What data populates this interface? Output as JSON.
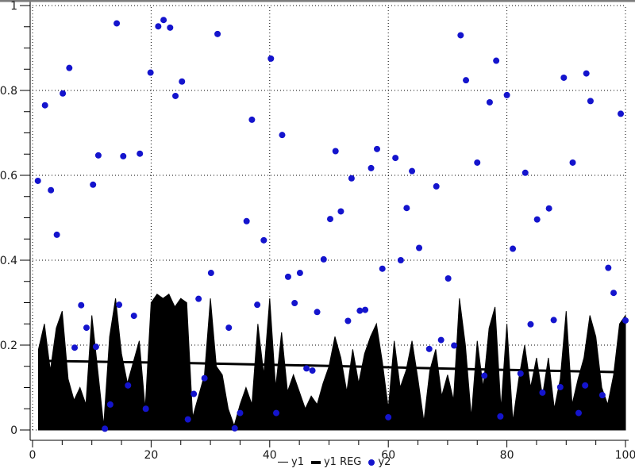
{
  "colors": {
    "background": "#ffffff",
    "series_area": "#000000",
    "regression_line": "#000000",
    "scatter": "#1414cd",
    "grid": "#000000",
    "frame": "#7b7b7b",
    "text": "#1a1a1a"
  },
  "chart_data": {
    "type": "mixed",
    "title": "",
    "grid": "dotted lines at every major tick, plot border dotted",
    "legend_position": "bottom-center",
    "x_axis": {
      "min": 0,
      "max": 100,
      "major_ticks": [
        0,
        20,
        40,
        60,
        80,
        100
      ],
      "tick_labels": [
        "0",
        "20",
        "40",
        "60",
        "80",
        "100"
      ],
      "minor_tick_step": 5
    },
    "y_axis": {
      "min": 0,
      "max": 1,
      "major_ticks": [
        0,
        0.2,
        0.4,
        0.6,
        0.8,
        1
      ],
      "tick_labels": [
        "0",
        "0.2",
        "0.4",
        "0.6",
        "0.8",
        "1"
      ],
      "minor_tick_step": 0.05
    },
    "legend": [
      {
        "label": "y1",
        "swatch": "thin-line",
        "color": "#000000"
      },
      {
        "label": "y1 REG",
        "swatch": "thick-line",
        "color": "#000000"
      },
      {
        "label": "y2",
        "swatch": "dot",
        "color": "#1414cd"
      }
    ],
    "series": [
      {
        "name": "y1",
        "type": "area",
        "color": "#000000",
        "x_start": 1,
        "x_step": 1,
        "values": [
          0.19,
          0.25,
          0.14,
          0.24,
          0.28,
          0.12,
          0.07,
          0.1,
          0.06,
          0.27,
          0.14,
          0.01,
          0.22,
          0.31,
          0.18,
          0.11,
          0.16,
          0.21,
          0.05,
          0.3,
          0.32,
          0.31,
          0.32,
          0.29,
          0.31,
          0.3,
          0.03,
          0.08,
          0.13,
          0.31,
          0.15,
          0.13,
          0.05,
          0.01,
          0.06,
          0.1,
          0.06,
          0.25,
          0.13,
          0.31,
          0.1,
          0.23,
          0.09,
          0.13,
          0.09,
          0.05,
          0.08,
          0.06,
          0.11,
          0.15,
          0.22,
          0.17,
          0.09,
          0.19,
          0.11,
          0.18,
          0.22,
          0.25,
          0.16,
          0.05,
          0.21,
          0.1,
          0.14,
          0.21,
          0.12,
          0.02,
          0.14,
          0.19,
          0.08,
          0.13,
          0.07,
          0.31,
          0.2,
          0.03,
          0.21,
          0.1,
          0.24,
          0.29,
          0.05,
          0.25,
          0.02,
          0.12,
          0.2,
          0.1,
          0.17,
          0.08,
          0.17,
          0.05,
          0.12,
          0.28,
          0.06,
          0.12,
          0.17,
          0.27,
          0.22,
          0.1,
          0.06,
          0.13,
          0.25,
          0.27
        ]
      },
      {
        "name": "y1 REG",
        "type": "line",
        "color": "#000000",
        "stroke_width": 3,
        "points": [
          [
            1,
            0.163
          ],
          [
            25,
            0.158
          ],
          [
            50,
            0.151
          ],
          [
            75,
            0.143
          ],
          [
            100,
            0.136
          ]
        ]
      },
      {
        "name": "y2",
        "type": "scatter",
        "color": "#1414cd",
        "marker_radius": 4,
        "points": [
          [
            0.9,
            0.587
          ],
          [
            2.1,
            0.765
          ],
          [
            3.1,
            0.565
          ],
          [
            4.1,
            0.46
          ],
          [
            5.1,
            0.793
          ],
          [
            6.2,
            0.853
          ],
          [
            7.1,
            0.194
          ],
          [
            8.2,
            0.294
          ],
          [
            9.1,
            0.241
          ],
          [
            10.2,
            0.578
          ],
          [
            10.7,
            0.196
          ],
          [
            11.1,
            0.647
          ],
          [
            12.2,
            0.003
          ],
          [
            13.1,
            0.06
          ],
          [
            14.2,
            0.958
          ],
          [
            14.6,
            0.295
          ],
          [
            15.3,
            0.645
          ],
          [
            16.1,
            0.105
          ],
          [
            17.1,
            0.269
          ],
          [
            18.1,
            0.651
          ],
          [
            19.1,
            0.05
          ],
          [
            19.9,
            0.842
          ],
          [
            21.2,
            0.951
          ],
          [
            22.1,
            0.966
          ],
          [
            23.2,
            0.948
          ],
          [
            24.1,
            0.787
          ],
          [
            25.2,
            0.821
          ],
          [
            26.2,
            0.025
          ],
          [
            27.2,
            0.085
          ],
          [
            28,
            0.309
          ],
          [
            29,
            0.122
          ],
          [
            30.1,
            0.37
          ],
          [
            31.2,
            0.933
          ],
          [
            33.1,
            0.241
          ],
          [
            34.1,
            0.004
          ],
          [
            35,
            0.04
          ],
          [
            36.1,
            0.492
          ],
          [
            37,
            0.731
          ],
          [
            37.9,
            0.295
          ],
          [
            39,
            0.447
          ],
          [
            40.2,
            0.875
          ],
          [
            41.1,
            0.04
          ],
          [
            42.1,
            0.695
          ],
          [
            43.1,
            0.361
          ],
          [
            44.2,
            0.299
          ],
          [
            45.1,
            0.37
          ],
          [
            46.2,
            0.145
          ],
          [
            47.2,
            0.14
          ],
          [
            48,
            0.278
          ],
          [
            49.1,
            0.402
          ],
          [
            50.2,
            0.497
          ],
          [
            51.1,
            0.657
          ],
          [
            52,
            0.515
          ],
          [
            53.2,
            0.257
          ],
          [
            53.8,
            0.593
          ],
          [
            55.2,
            0.281
          ],
          [
            56.1,
            0.283
          ],
          [
            57.1,
            0.617
          ],
          [
            58.1,
            0.662
          ],
          [
            59,
            0.38
          ],
          [
            60,
            0.03
          ],
          [
            61.2,
            0.641
          ],
          [
            62.1,
            0.4
          ],
          [
            63.1,
            0.523
          ],
          [
            64,
            0.61
          ],
          [
            65.2,
            0.429
          ],
          [
            66.9,
            0.191
          ],
          [
            68.1,
            0.574
          ],
          [
            68.9,
            0.212
          ],
          [
            70.1,
            0.357
          ],
          [
            71.1,
            0.199
          ],
          [
            72.2,
            0.93
          ],
          [
            73.1,
            0.824
          ],
          [
            75,
            0.63
          ],
          [
            76.2,
            0.128
          ],
          [
            77.1,
            0.772
          ],
          [
            78.2,
            0.87
          ],
          [
            78.9,
            0.032
          ],
          [
            80,
            0.789
          ],
          [
            81,
            0.427
          ],
          [
            82.3,
            0.133
          ],
          [
            83.1,
            0.606
          ],
          [
            84,
            0.249
          ],
          [
            85.1,
            0.496
          ],
          [
            86,
            0.088
          ],
          [
            87.1,
            0.522
          ],
          [
            87.9,
            0.259
          ],
          [
            89,
            0.101
          ],
          [
            89.6,
            0.83
          ],
          [
            91.1,
            0.63
          ],
          [
            92.1,
            0.04
          ],
          [
            93.2,
            0.105
          ],
          [
            93.4,
            0.84
          ],
          [
            94.1,
            0.775
          ],
          [
            96.1,
            0.082
          ],
          [
            97.1,
            0.382
          ],
          [
            98,
            0.323
          ],
          [
            99.2,
            0.745
          ],
          [
            100,
            0.258
          ]
        ]
      }
    ]
  }
}
